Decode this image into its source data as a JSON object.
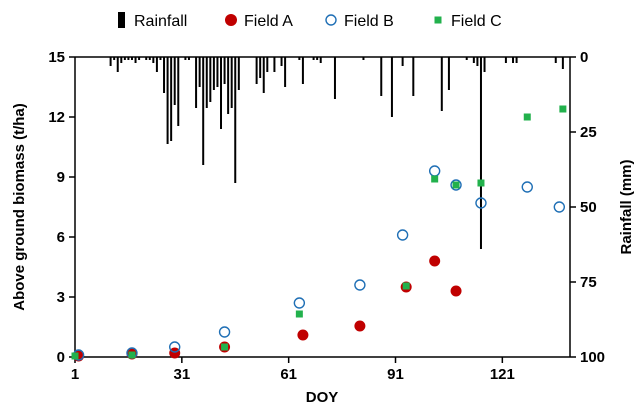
{
  "chart_data": {
    "type": "scatter",
    "title": "",
    "xlabel": "DOY",
    "ylabel": "Above ground biomass (t/ha)",
    "y2label": "Rainfall (mm)",
    "xlim": [
      1,
      140
    ],
    "ylim": [
      0,
      15
    ],
    "y2lim": [
      0,
      100
    ],
    "y2_inverted": true,
    "xticks": [
      "1",
      "31",
      "61",
      "91",
      "121"
    ],
    "yticks": [
      "0",
      "3",
      "6",
      "9",
      "12",
      "15"
    ],
    "y2ticks": [
      "0",
      "25",
      "50",
      "75",
      "100"
    ],
    "grid": false,
    "legend_position": "top",
    "series": [
      {
        "name": "Rainfall",
        "kind": "bar",
        "axis": "y2",
        "color": "#000000",
        "x": [
          11,
          12,
          13,
          14,
          15,
          16,
          17,
          18,
          19,
          21,
          22,
          23,
          24,
          25,
          26,
          27,
          28,
          29,
          30,
          32,
          33,
          35,
          36,
          37,
          38,
          39,
          40,
          41,
          42,
          43,
          44,
          45,
          46,
          47,
          52,
          53,
          54,
          55,
          57,
          59,
          60,
          64,
          65,
          68,
          69,
          70,
          74,
          82,
          87,
          90,
          93,
          96,
          104,
          106,
          111,
          113,
          114,
          115,
          116,
          122,
          124,
          125,
          136,
          138
        ],
        "values": [
          3,
          1,
          5,
          2,
          1,
          1,
          1,
          2,
          1,
          1,
          1,
          2,
          5,
          1,
          12,
          29,
          28,
          16,
          23,
          1,
          1,
          17,
          10,
          36,
          17,
          15,
          11,
          10,
          24,
          9,
          19,
          17,
          42,
          11,
          9,
          7,
          12,
          5,
          5,
          3,
          10,
          1,
          9,
          1,
          1,
          2,
          14,
          1,
          13,
          20,
          3,
          13,
          18,
          11,
          1,
          2,
          3,
          64,
          5,
          2,
          2,
          2,
          2,
          4
        ]
      },
      {
        "name": "Field A",
        "kind": "filled-circle",
        "axis": "y",
        "color": "#c00000",
        "x": [
          2,
          17,
          29,
          43,
          65,
          81,
          94,
          102,
          108
        ],
        "values": [
          0.05,
          0.15,
          0.2,
          0.5,
          1.1,
          1.55,
          3.5,
          4.8,
          3.3
        ]
      },
      {
        "name": "Field B",
        "kind": "open-circle",
        "axis": "y",
        "color": "#1f6fb5",
        "x": [
          2,
          17,
          29,
          43,
          64,
          81,
          93,
          102,
          108,
          115,
          128,
          137
        ],
        "values": [
          0.1,
          0.2,
          0.5,
          1.25,
          2.7,
          3.6,
          6.1,
          9.3,
          8.6,
          7.7,
          8.5,
          7.5
        ]
      },
      {
        "name": "Field C",
        "kind": "square",
        "axis": "y",
        "color": "#22b14c",
        "x": [
          1,
          17,
          43,
          64,
          94,
          102,
          108,
          115,
          128,
          138
        ],
        "values": [
          0.05,
          0.1,
          0.5,
          2.15,
          3.55,
          8.9,
          8.6,
          8.7,
          12.0,
          12.4
        ]
      }
    ]
  }
}
